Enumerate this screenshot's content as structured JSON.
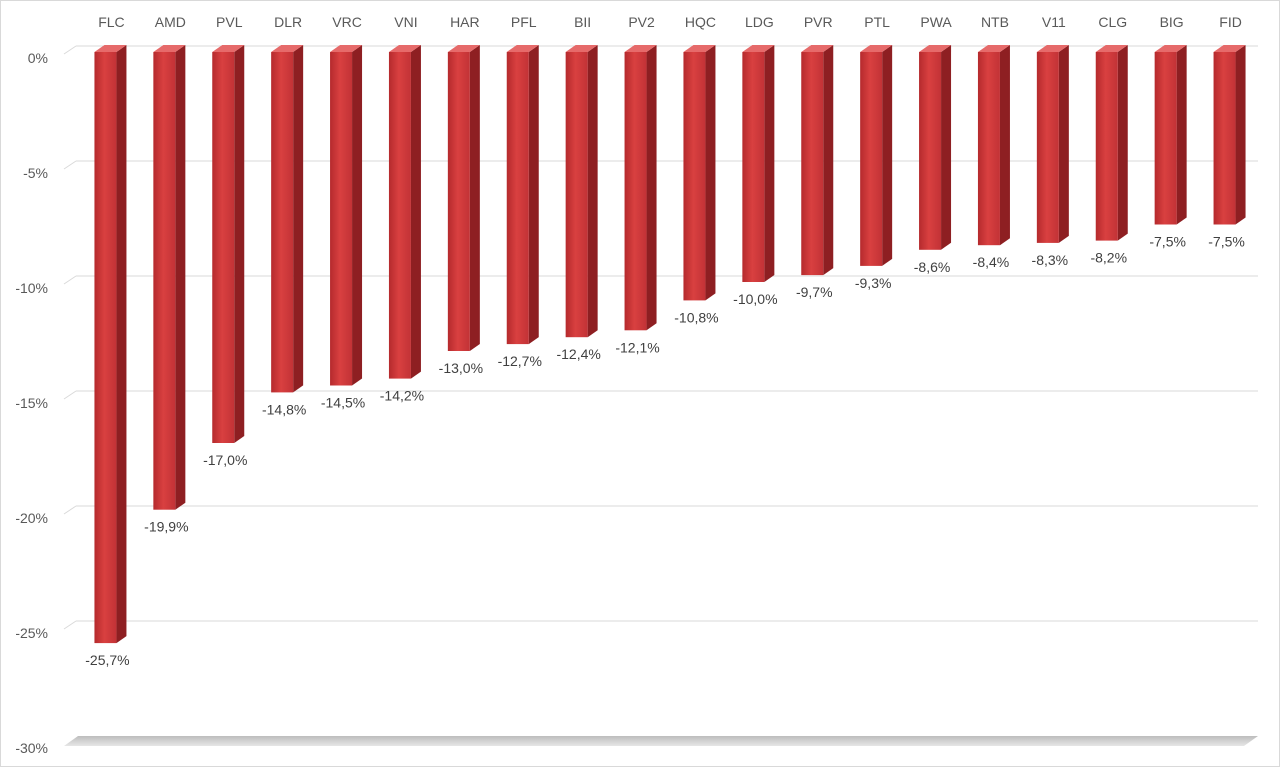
{
  "chart_data": {
    "type": "bar",
    "categories": [
      "FLC",
      "AMD",
      "PVL",
      "DLR",
      "VRC",
      "VNI",
      "HAR",
      "PFL",
      "BII",
      "PV2",
      "HQC",
      "LDG",
      "PVR",
      "PTL",
      "PWA",
      "NTB",
      "V11",
      "CLG",
      "BIG",
      "FID"
    ],
    "values": [
      -25.7,
      -19.9,
      -17.0,
      -14.8,
      -14.5,
      -14.2,
      -13.0,
      -12.7,
      -12.4,
      -12.1,
      -10.8,
      -10.0,
      -9.7,
      -9.3,
      -8.6,
      -8.4,
      -8.3,
      -8.2,
      -7.5,
      -7.5
    ],
    "data_labels": [
      "-25,7%",
      "-19,9%",
      "-17,0%",
      "-14,8%",
      "-14,5%",
      "-14,2%",
      "-13,0%",
      "-12,7%",
      "-12,4%",
      "-12,1%",
      "-10,8%",
      "-10,0%",
      "-9,7%",
      "-9,3%",
      "-8,6%",
      "-8,4%",
      "-8,3%",
      "-8,2%",
      "-7,5%",
      "-7,5%"
    ],
    "y_ticks": [
      0,
      -5,
      -10,
      -15,
      -20,
      -25,
      -30
    ],
    "y_tick_labels": [
      "0%",
      "-5%",
      "-10%",
      "-15%",
      "-20%",
      "-25%",
      "-30%"
    ],
    "ylim": [
      -30,
      0
    ],
    "title": "",
    "xlabel": "",
    "ylabel": "",
    "grid": true,
    "legend": "none",
    "category_axis_position": "top",
    "colors": {
      "bar_front": "#d63c3c",
      "bar_side": "#8e1f22",
      "bar_top": "#e66a6a",
      "grid": "#d9d9d9"
    }
  }
}
